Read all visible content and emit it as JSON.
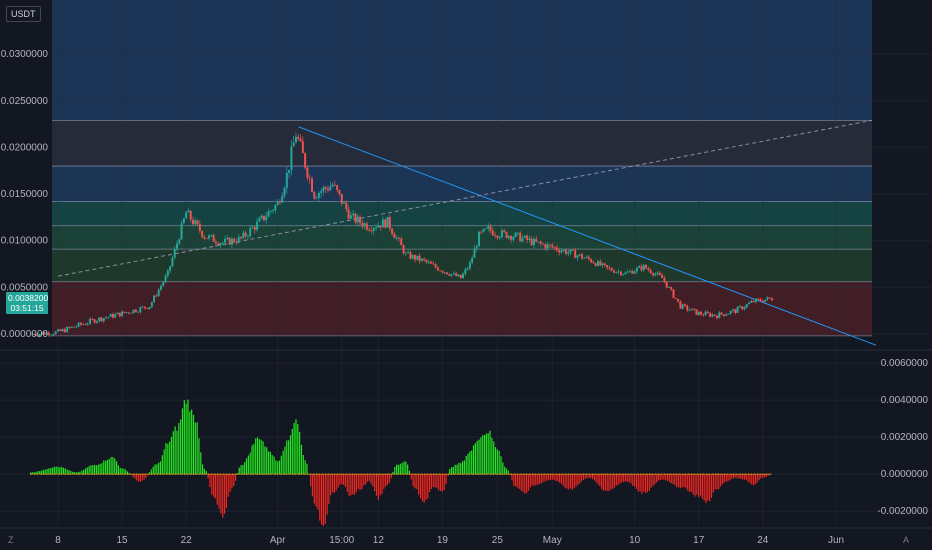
{
  "header": {
    "currency": "USDT"
  },
  "price_tag": {
    "value": "0.0038200",
    "countdown": "03:51:15"
  },
  "footer": {
    "left_mark": "Z",
    "right_mark": "A"
  },
  "colors": {
    "bg": "#131722",
    "candle_up": "#26a69a",
    "candle_down": "#ef5350",
    "hist_up": "#22e81f",
    "hist_down": "#f2261f",
    "trendline": "#2196f3"
  },
  "chart_data": [
    {
      "type": "candlestick",
      "title": "",
      "ylim": [
        -0.0015,
        0.0358
      ],
      "y_ticks": [
        "0.0300000",
        "0.0250000",
        "0.0200000",
        "0.0150000",
        "0.0100000",
        "0.0050000",
        "-0.0000000"
      ],
      "y_tick_values": [
        0.03,
        0.025,
        0.02,
        0.015,
        0.01,
        0.005,
        0.0
      ],
      "x_ticks": [
        "8",
        "15",
        "22",
        "Apr",
        "15:00",
        "12",
        "19",
        "25",
        "May",
        "10",
        "17",
        "24",
        "Jun"
      ],
      "x_tick_days": [
        8,
        15,
        22,
        32,
        39,
        43,
        50,
        56,
        62,
        71,
        78,
        85,
        93
      ],
      "last_price": 0.00382,
      "fib_levels": [
        {
          "value": 0.0358,
          "color": "#1e3a5f"
        },
        {
          "value": 0.0229,
          "color": "#2a2f3d"
        },
        {
          "value": 0.018,
          "color": "#1f3b5e"
        },
        {
          "value": 0.0142,
          "color": "#164a48"
        },
        {
          "value": 0.0116,
          "color": "#1c4a3a"
        },
        {
          "value": 0.0091,
          "color": "#223e2e"
        },
        {
          "value": 0.0056,
          "color": "#4a1f27"
        },
        {
          "value": -0.0002,
          "color": null
        }
      ],
      "series": [
        {
          "x_days": [
            5,
            8,
            12,
            15,
            18,
            20,
            22,
            24,
            26,
            28,
            30,
            32,
            33,
            34,
            36,
            38,
            40,
            42,
            44,
            46,
            48,
            50,
            52,
            53,
            54,
            55,
            56,
            58,
            60,
            62,
            64,
            66,
            68,
            70,
            72,
            74,
            76,
            78,
            80,
            82,
            84,
            86
          ],
          "values": [
            0.0,
            0.0002,
            0.0015,
            0.0022,
            0.003,
            0.0065,
            0.013,
            0.0105,
            0.0098,
            0.0102,
            0.012,
            0.014,
            0.017,
            0.0215,
            0.015,
            0.016,
            0.0125,
            0.0115,
            0.012,
            0.0085,
            0.0078,
            0.0068,
            0.006,
            0.0075,
            0.0105,
            0.0112,
            0.0108,
            0.0105,
            0.0098,
            0.0093,
            0.0087,
            0.008,
            0.007,
            0.0065,
            0.0072,
            0.006,
            0.003,
            0.0022,
            0.002,
            0.0025,
            0.0035,
            0.0038
          ]
        }
      ]
    },
    {
      "type": "bar",
      "title": "",
      "ylim": [
        -0.0028,
        0.0066
      ],
      "y_ticks": [
        "0.0060000",
        "0.0040000",
        "0.0020000",
        "0.0000000",
        "-0.0020000"
      ],
      "y_tick_values": [
        0.006,
        0.004,
        0.002,
        0.0,
        -0.002
      ],
      "series": [
        {
          "x_days": [
            5,
            8,
            10,
            12,
            14,
            15,
            17,
            19,
            20,
            21,
            22,
            23,
            24,
            25,
            26,
            27,
            28,
            30,
            31,
            32,
            33,
            34,
            35,
            36,
            37,
            38,
            39,
            40,
            41,
            42,
            43,
            44,
            45,
            46,
            47,
            48,
            49,
            50,
            51,
            52,
            53,
            54,
            55,
            56,
            57,
            58,
            59,
            60,
            62,
            64,
            66,
            68,
            70,
            72,
            74,
            76,
            78,
            79,
            80,
            81,
            82,
            83,
            84,
            85,
            86
          ],
          "values": [
            0.0001,
            0.0004,
            0.0001,
            0.0005,
            0.0009,
            0.0003,
            -0.0004,
            0.0006,
            0.0017,
            0.0025,
            0.004,
            0.003,
            0.0003,
            -0.0012,
            -0.0022,
            -0.0008,
            0.0005,
            0.002,
            0.0013,
            0.0007,
            0.0017,
            0.003,
            0.0008,
            -0.0015,
            -0.003,
            -0.001,
            -0.0005,
            -0.0012,
            -0.0008,
            -0.0004,
            -0.0013,
            -0.0006,
            0.0005,
            0.0007,
            -0.0008,
            -0.0015,
            -0.0007,
            -0.001,
            0.0004,
            0.0006,
            0.0012,
            0.002,
            0.0023,
            0.0014,
            0.0003,
            -0.0007,
            -0.001,
            -0.0006,
            -0.0003,
            -0.0008,
            -0.0002,
            -0.0009,
            -0.0004,
            -0.001,
            -0.0003,
            -0.0007,
            -0.0012,
            -0.0015,
            -0.0008,
            -0.0004,
            -0.0002,
            -0.0003,
            -0.0006,
            -0.0002,
            0.0
          ]
        }
      ]
    }
  ]
}
